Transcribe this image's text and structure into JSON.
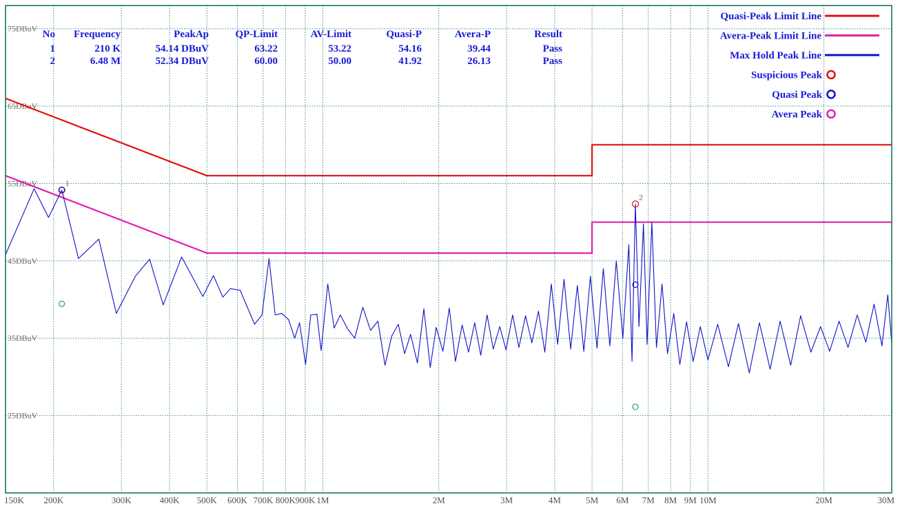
{
  "chart_data": {
    "type": "line",
    "x_scale": "log",
    "x_range_hz": [
      150000,
      30000000
    ],
    "y_range_dbuv": [
      15,
      78
    ],
    "y_tick_labels": [
      {
        "value": 75,
        "label": "75DBuV"
      },
      {
        "value": 65,
        "label": "65DBuV"
      },
      {
        "value": 55,
        "label": "55DBuV"
      },
      {
        "value": 45,
        "label": "45DBuV"
      },
      {
        "value": 35,
        "label": "35DBuV"
      },
      {
        "value": 25,
        "label": "25DBuV"
      }
    ],
    "x_gridlines_hz": [
      150000,
      200000,
      300000,
      400000,
      500000,
      600000,
      700000,
      800000,
      900000,
      1000000,
      2000000,
      3000000,
      4000000,
      5000000,
      6000000,
      7000000,
      8000000,
      9000000,
      10000000,
      20000000,
      30000000
    ],
    "x_tick_labels": [
      {
        "hz": 150000,
        "label": "150K"
      },
      {
        "hz": 200000,
        "label": "200K"
      },
      {
        "hz": 300000,
        "label": "300K"
      },
      {
        "hz": 400000,
        "label": "400K"
      },
      {
        "hz": 500000,
        "label": "500K"
      },
      {
        "hz": 600000,
        "label": "600K"
      },
      {
        "hz": 700000,
        "label": "700K"
      },
      {
        "hz": 800000,
        "label": "800K"
      },
      {
        "hz": 900000,
        "label": "900K"
      },
      {
        "hz": 1000000,
        "label": "1M"
      },
      {
        "hz": 2000000,
        "label": "2M"
      },
      {
        "hz": 3000000,
        "label": "3M"
      },
      {
        "hz": 4000000,
        "label": "4M"
      },
      {
        "hz": 5000000,
        "label": "5M"
      },
      {
        "hz": 6000000,
        "label": "6M"
      },
      {
        "hz": 7000000,
        "label": "7M"
      },
      {
        "hz": 8000000,
        "label": "8M"
      },
      {
        "hz": 9000000,
        "label": "9M"
      },
      {
        "hz": 10000000,
        "label": "10M"
      },
      {
        "hz": 20000000,
        "label": "20M"
      },
      {
        "hz": 30000000,
        "label": "30M"
      }
    ],
    "grid": true,
    "series": [
      {
        "name": "Quasi-Peak Limit Line",
        "color": "#e01010",
        "points": [
          [
            150000,
            66.0
          ],
          [
            500000,
            56.0
          ],
          [
            5000000,
            56.0
          ],
          [
            5000000,
            60.0
          ],
          [
            30000000,
            60.0
          ]
        ]
      },
      {
        "name": "Avera-Peak Limit Line",
        "color": "#e020b0",
        "points": [
          [
            150000,
            56.0
          ],
          [
            500000,
            46.0
          ],
          [
            5000000,
            46.0
          ],
          [
            5000000,
            50.0
          ],
          [
            30000000,
            50.0
          ]
        ]
      },
      {
        "name": "Max Hold Peak Line",
        "color": "#1010c8",
        "points": [
          [
            150000,
            45.8
          ],
          [
            178000,
            54.3
          ],
          [
            194000,
            50.6
          ],
          [
            210000,
            54.14
          ],
          [
            232000,
            45.3
          ],
          [
            262000,
            47.8
          ],
          [
            291000,
            38.2
          ],
          [
            326000,
            43.0
          ],
          [
            355000,
            45.2
          ],
          [
            385000,
            39.3
          ],
          [
            430000,
            45.5
          ],
          [
            488000,
            40.4
          ],
          [
            520000,
            43.1
          ],
          [
            550000,
            40.3
          ],
          [
            575000,
            41.4
          ],
          [
            610000,
            41.2
          ],
          [
            638000,
            38.9
          ],
          [
            665000,
            36.8
          ],
          [
            695000,
            38.0
          ],
          [
            725000,
            45.3
          ],
          [
            752000,
            38.0
          ],
          [
            782000,
            38.2
          ],
          [
            815000,
            37.4
          ],
          [
            845000,
            35.0
          ],
          [
            870000,
            37.0
          ],
          [
            902000,
            31.6
          ],
          [
            930000,
            38.0
          ],
          [
            965000,
            38.1
          ],
          [
            990000,
            33.4
          ],
          [
            1030000,
            42.0
          ],
          [
            1070000,
            36.3
          ],
          [
            1110000,
            38.0
          ],
          [
            1160000,
            36.2
          ],
          [
            1210000,
            35.0
          ],
          [
            1270000,
            39.0
          ],
          [
            1330000,
            36.0
          ],
          [
            1390000,
            37.2
          ],
          [
            1450000,
            31.5
          ],
          [
            1510000,
            35.3
          ],
          [
            1570000,
            36.8
          ],
          [
            1630000,
            33.0
          ],
          [
            1690000,
            35.5
          ],
          [
            1760000,
            31.8
          ],
          [
            1830000,
            38.8
          ],
          [
            1900000,
            31.2
          ],
          [
            1970000,
            36.4
          ],
          [
            2050000,
            33.3
          ],
          [
            2130000,
            38.9
          ],
          [
            2210000,
            32.0
          ],
          [
            2300000,
            36.7
          ],
          [
            2390000,
            33.2
          ],
          [
            2480000,
            37.0
          ],
          [
            2570000,
            32.8
          ],
          [
            2670000,
            38.0
          ],
          [
            2770000,
            33.6
          ],
          [
            2880000,
            36.5
          ],
          [
            2990000,
            33.5
          ],
          [
            3110000,
            38.0
          ],
          [
            3230000,
            33.8
          ],
          [
            3360000,
            37.9
          ],
          [
            3490000,
            34.4
          ],
          [
            3630000,
            38.5
          ],
          [
            3770000,
            33.2
          ],
          [
            3920000,
            42.0
          ],
          [
            4070000,
            34.2
          ],
          [
            4230000,
            42.6
          ],
          [
            4400000,
            33.6
          ],
          [
            4580000,
            41.8
          ],
          [
            4760000,
            33.3
          ],
          [
            4950000,
            43.0
          ],
          [
            5150000,
            33.7
          ],
          [
            5350000,
            44.0
          ],
          [
            5560000,
            34.0
          ],
          [
            5780000,
            45.0
          ],
          [
            6010000,
            35.0
          ],
          [
            6230000,
            47.1
          ],
          [
            6350000,
            32.0
          ],
          [
            6480000,
            52.34
          ],
          [
            6620000,
            36.5
          ],
          [
            6800000,
            49.8
          ],
          [
            6950000,
            34.2
          ],
          [
            7150000,
            50.0
          ],
          [
            7350000,
            33.8
          ],
          [
            7600000,
            42.0
          ],
          [
            7850000,
            33.0
          ],
          [
            8150000,
            38.2
          ],
          [
            8450000,
            31.6
          ],
          [
            8800000,
            37.1
          ],
          [
            9150000,
            32.0
          ],
          [
            9550000,
            36.5
          ],
          [
            10000000,
            32.2
          ],
          [
            10600000,
            36.8
          ],
          [
            11300000,
            31.3
          ],
          [
            12000000,
            36.9
          ],
          [
            12800000,
            30.5
          ],
          [
            13600000,
            37.0
          ],
          [
            14500000,
            31.0
          ],
          [
            15400000,
            37.2
          ],
          [
            16400000,
            31.5
          ],
          [
            17400000,
            37.9
          ],
          [
            18500000,
            33.2
          ],
          [
            19600000,
            36.5
          ],
          [
            20700000,
            33.3
          ],
          [
            21900000,
            37.2
          ],
          [
            23100000,
            33.8
          ],
          [
            24400000,
            38.0
          ],
          [
            25700000,
            34.5
          ],
          [
            27000000,
            39.4
          ],
          [
            28300000,
            34.0
          ],
          [
            29300000,
            40.6
          ],
          [
            30000000,
            34.3
          ]
        ]
      }
    ],
    "markers": [
      {
        "type": "suspicious-peak",
        "label": "1",
        "freq_hz": 210000,
        "level": 54.14
      },
      {
        "type": "suspicious-peak",
        "label": "2",
        "freq_hz": 6480000,
        "level": 52.34
      },
      {
        "type": "quasi-peak",
        "freq_hz": 210000,
        "level": 54.16
      },
      {
        "type": "quasi-peak",
        "freq_hz": 6480000,
        "level": 41.92
      },
      {
        "type": "avera-peak",
        "freq_hz": 210000,
        "level": 39.44
      },
      {
        "type": "avera-peak",
        "freq_hz": 6480000,
        "level": 26.13
      }
    ],
    "table": {
      "headers": [
        "No",
        "Frequency",
        "PeakAp",
        "QP-Limit",
        "AV-Limit",
        "Quasi-P",
        "Avera-P",
        "Result"
      ],
      "rows": [
        [
          "1",
          "210 K",
          "54.14 DBuV",
          "63.22",
          "53.22",
          "54.16",
          "39.44",
          "Pass"
        ],
        [
          "2",
          "6.48 M",
          "52.34 DBuV",
          "60.00",
          "50.00",
          "41.92",
          "26.13",
          "Pass"
        ]
      ]
    },
    "legend": {
      "placement": "top-right",
      "entries": [
        {
          "label": "Quasi-Peak Limit Line",
          "kind": "line",
          "color": "#e01010"
        },
        {
          "label": "Avera-Peak Limit Line",
          "kind": "line",
          "color": "#e020b0"
        },
        {
          "label": "Max Hold Peak Line",
          "kind": "line",
          "color": "#1010c8"
        },
        {
          "label": "Suspicious Peak",
          "kind": "circle",
          "color": "#e01010"
        },
        {
          "label": "Quasi Peak",
          "kind": "circle",
          "color": "#1010c8"
        },
        {
          "label": "Avera Peak",
          "kind": "circle",
          "color": "#e020b0"
        }
      ]
    },
    "colors": {
      "frame": "#0f6b5a",
      "grid": "#3c8f80",
      "table_text": "#1a1ad6",
      "legend_text": "#1a1ad6",
      "peak_label": "#e01010",
      "avg_marker": "#1a9e8e"
    }
  }
}
